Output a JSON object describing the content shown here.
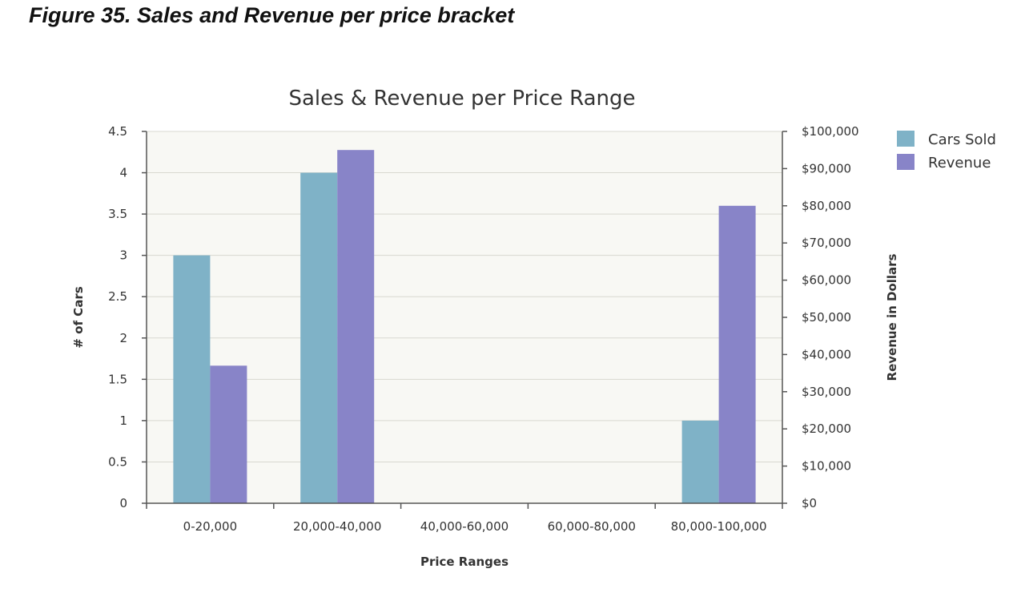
{
  "caption": "Figure 35. Sales and Revenue per price bracket",
  "chart_data": {
    "type": "bar",
    "title": "Sales & Revenue per Price Range",
    "xlabel": "Price Ranges",
    "ylabel": "# of Cars",
    "y2label": "Revenue in Dollars",
    "categories": [
      "0-20,000",
      "20,000-40,000",
      "40,000-60,000",
      "60,000-80,000",
      "80,000-100,000"
    ],
    "series": [
      {
        "name": "Cars Sold",
        "axis": "left",
        "color": "#7fb2c7",
        "values": [
          3,
          4,
          0,
          0,
          1
        ]
      },
      {
        "name": "Revenue",
        "axis": "right",
        "color": "#8884c8",
        "values": [
          37000,
          95000,
          0,
          0,
          80000
        ]
      }
    ],
    "ylim": [
      0,
      4.5
    ],
    "y2lim": [
      0,
      100000
    ],
    "yticks": [
      "0",
      "0.5",
      "1",
      "1.5",
      "2",
      "2.5",
      "3",
      "3.5",
      "4",
      "4.5"
    ],
    "y2ticks": [
      "$0",
      "$10,000",
      "$20,000",
      "$30,000",
      "$40,000",
      "$50,000",
      "$60,000",
      "$70,000",
      "$80,000",
      "$90,000",
      "$100,000"
    ],
    "grid": true,
    "legend": "top-right",
    "plot_background": "#f8f8f4",
    "gridline_color": "#d8d8d0",
    "axis_color": "#555555"
  }
}
